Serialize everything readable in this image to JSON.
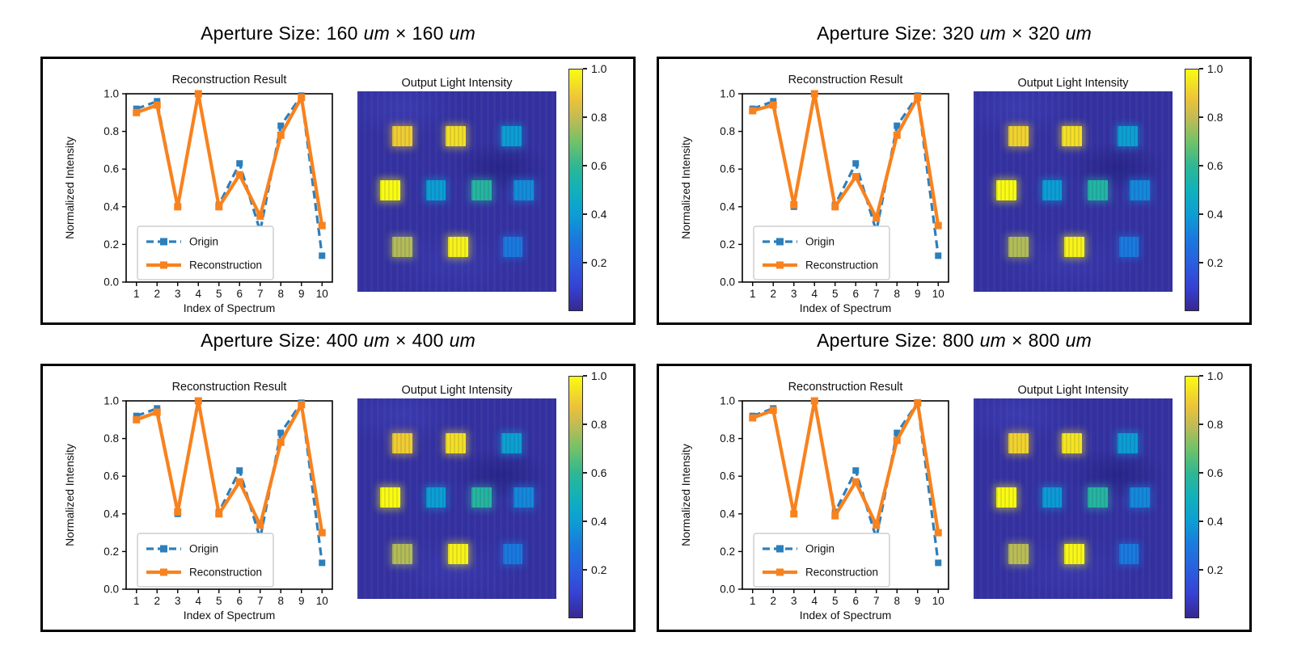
{
  "colors": {
    "origin_series": "#2d7fbb",
    "reconstruction_series": "#f8821e",
    "panel_border": "#000000",
    "axes_spine": "#000000",
    "legend_border": "#cfcfcf",
    "heatmap_background": "#33309f"
  },
  "panels": [
    {
      "name": "aperture-160",
      "title_prefix": "Aperture Size:",
      "size": "160",
      "times": "×",
      "unit": "um"
    },
    {
      "name": "aperture-320",
      "title_prefix": "Aperture Size:",
      "size": "320",
      "times": "×",
      "unit": "um"
    },
    {
      "name": "aperture-400",
      "title_prefix": "Aperture Size:",
      "size": "400",
      "times": "×",
      "unit": "um"
    },
    {
      "name": "aperture-800",
      "title_prefix": "Aperture Size:",
      "size": "800",
      "times": "×",
      "unit": "um"
    }
  ],
  "chart_data": [
    {
      "aperture": "160 um × 160 um",
      "line": {
        "type": "line",
        "title": "Reconstruction Result",
        "xlabel": "Index of Spectrum",
        "ylabel": "Normalized Intensity",
        "x": [
          1,
          2,
          3,
          4,
          5,
          6,
          7,
          8,
          9,
          10
        ],
        "x_tick_labels": [
          "1",
          "2",
          "3",
          "4",
          "5",
          "6",
          "7",
          "8",
          "9",
          "10"
        ],
        "y_tick_labels": [
          "0.0",
          "0.2",
          "0.4",
          "0.6",
          "0.8",
          "1.0"
        ],
        "ylim": [
          0,
          1
        ],
        "xlim": [
          0.5,
          10.5
        ],
        "legend_position": "lower left",
        "series": [
          {
            "name": "Origin",
            "style": "dashed",
            "color": "#2d7fbb",
            "values": [
              0.92,
              0.96,
              0.4,
              1.0,
              0.41,
              0.63,
              0.27,
              0.83,
              0.99,
              0.14
            ]
          },
          {
            "name": "Reconstruction",
            "style": "solid",
            "color": "#f8821e",
            "values": [
              0.9,
              0.94,
              0.4,
              1.0,
              0.4,
              0.57,
              0.35,
              0.78,
              0.98,
              0.3
            ]
          }
        ]
      },
      "heatmap": {
        "type": "heatmap",
        "title": "Output Light Intensity",
        "colormap": "parula",
        "background_level": 0.05,
        "square_size": 0.1,
        "squares": [
          {
            "cx": 0.225,
            "cy": 0.225,
            "value": 0.9
          },
          {
            "cx": 0.495,
            "cy": 0.225,
            "value": 0.94
          },
          {
            "cx": 0.775,
            "cy": 0.225,
            "value": 0.4
          },
          {
            "cx": 0.165,
            "cy": 0.495,
            "value": 1.0
          },
          {
            "cx": 0.395,
            "cy": 0.495,
            "value": 0.4
          },
          {
            "cx": 0.625,
            "cy": 0.495,
            "value": 0.57
          },
          {
            "cx": 0.835,
            "cy": 0.495,
            "value": 0.35
          },
          {
            "cx": 0.225,
            "cy": 0.775,
            "value": 0.78
          },
          {
            "cx": 0.505,
            "cy": 0.775,
            "value": 0.98
          },
          {
            "cx": 0.78,
            "cy": 0.775,
            "value": 0.3
          }
        ],
        "colorbar": {
          "range": [
            0,
            1
          ],
          "tick_labels": [
            "1.0",
            "0.8",
            "0.6",
            "0.4",
            "0.2"
          ]
        }
      }
    },
    {
      "aperture": "320 um × 320 um",
      "line": {
        "type": "line",
        "title": "Reconstruction Result",
        "xlabel": "Index of Spectrum",
        "ylabel": "Normalized Intensity",
        "x": [
          1,
          2,
          3,
          4,
          5,
          6,
          7,
          8,
          9,
          10
        ],
        "x_tick_labels": [
          "1",
          "2",
          "3",
          "4",
          "5",
          "6",
          "7",
          "8",
          "9",
          "10"
        ],
        "y_tick_labels": [
          "0.0",
          "0.2",
          "0.4",
          "0.6",
          "0.8",
          "1.0"
        ],
        "ylim": [
          0,
          1
        ],
        "xlim": [
          0.5,
          10.5
        ],
        "legend_position": "lower left",
        "series": [
          {
            "name": "Origin",
            "style": "dashed",
            "color": "#2d7fbb",
            "values": [
              0.92,
              0.96,
              0.4,
              1.0,
              0.41,
              0.63,
              0.27,
              0.83,
              0.99,
              0.14
            ]
          },
          {
            "name": "Reconstruction",
            "style": "solid",
            "color": "#f8821e",
            "values": [
              0.91,
              0.94,
              0.41,
              1.0,
              0.4,
              0.56,
              0.34,
              0.78,
              0.98,
              0.3
            ]
          }
        ]
      },
      "heatmap": {
        "type": "heatmap",
        "title": "Output Light Intensity",
        "colormap": "parula",
        "background_level": 0.05,
        "square_size": 0.1,
        "squares": [
          {
            "cx": 0.225,
            "cy": 0.225,
            "value": 0.91
          },
          {
            "cx": 0.495,
            "cy": 0.225,
            "value": 0.94
          },
          {
            "cx": 0.775,
            "cy": 0.225,
            "value": 0.41
          },
          {
            "cx": 0.165,
            "cy": 0.495,
            "value": 1.0
          },
          {
            "cx": 0.395,
            "cy": 0.495,
            "value": 0.4
          },
          {
            "cx": 0.625,
            "cy": 0.495,
            "value": 0.56
          },
          {
            "cx": 0.835,
            "cy": 0.495,
            "value": 0.34
          },
          {
            "cx": 0.225,
            "cy": 0.775,
            "value": 0.78
          },
          {
            "cx": 0.505,
            "cy": 0.775,
            "value": 0.98
          },
          {
            "cx": 0.78,
            "cy": 0.775,
            "value": 0.3
          }
        ],
        "colorbar": {
          "range": [
            0,
            1
          ],
          "tick_labels": [
            "1.0",
            "0.8",
            "0.6",
            "0.4",
            "0.2"
          ]
        }
      }
    },
    {
      "aperture": "400 um × 400 um",
      "line": {
        "type": "line",
        "title": "Reconstruction Result",
        "xlabel": "Index of Spectrum",
        "ylabel": "Normalized Intensity",
        "x": [
          1,
          2,
          3,
          4,
          5,
          6,
          7,
          8,
          9,
          10
        ],
        "x_tick_labels": [
          "1",
          "2",
          "3",
          "4",
          "5",
          "6",
          "7",
          "8",
          "9",
          "10"
        ],
        "y_tick_labels": [
          "0.0",
          "0.2",
          "0.4",
          "0.6",
          "0.8",
          "1.0"
        ],
        "ylim": [
          0,
          1
        ],
        "xlim": [
          0.5,
          10.5
        ],
        "legend_position": "lower left",
        "series": [
          {
            "name": "Origin",
            "style": "dashed",
            "color": "#2d7fbb",
            "values": [
              0.92,
              0.96,
              0.4,
              1.0,
              0.41,
              0.63,
              0.27,
              0.83,
              0.99,
              0.14
            ]
          },
          {
            "name": "Reconstruction",
            "style": "solid",
            "color": "#f8821e",
            "values": [
              0.9,
              0.94,
              0.41,
              1.0,
              0.4,
              0.57,
              0.34,
              0.78,
              0.98,
              0.3
            ]
          }
        ]
      },
      "heatmap": {
        "type": "heatmap",
        "title": "Output Light Intensity",
        "colormap": "parula",
        "background_level": 0.05,
        "square_size": 0.1,
        "squares": [
          {
            "cx": 0.225,
            "cy": 0.225,
            "value": 0.9
          },
          {
            "cx": 0.495,
            "cy": 0.225,
            "value": 0.94
          },
          {
            "cx": 0.775,
            "cy": 0.225,
            "value": 0.41
          },
          {
            "cx": 0.165,
            "cy": 0.495,
            "value": 1.0
          },
          {
            "cx": 0.395,
            "cy": 0.495,
            "value": 0.4
          },
          {
            "cx": 0.625,
            "cy": 0.495,
            "value": 0.57
          },
          {
            "cx": 0.835,
            "cy": 0.495,
            "value": 0.34
          },
          {
            "cx": 0.225,
            "cy": 0.775,
            "value": 0.78
          },
          {
            "cx": 0.505,
            "cy": 0.775,
            "value": 0.98
          },
          {
            "cx": 0.78,
            "cy": 0.775,
            "value": 0.3
          }
        ],
        "colorbar": {
          "range": [
            0,
            1
          ],
          "tick_labels": [
            "1.0",
            "0.8",
            "0.6",
            "0.4",
            "0.2"
          ]
        }
      }
    },
    {
      "aperture": "800 um × 800 um",
      "line": {
        "type": "line",
        "title": "Reconstruction Result",
        "xlabel": "Index of Spectrum",
        "ylabel": "Normalized Intensity",
        "x": [
          1,
          2,
          3,
          4,
          5,
          6,
          7,
          8,
          9,
          10
        ],
        "x_tick_labels": [
          "1",
          "2",
          "3",
          "4",
          "5",
          "6",
          "7",
          "8",
          "9",
          "10"
        ],
        "y_tick_labels": [
          "0.0",
          "0.2",
          "0.4",
          "0.6",
          "0.8",
          "1.0"
        ],
        "ylim": [
          0,
          1
        ],
        "xlim": [
          0.5,
          10.5
        ],
        "legend_position": "lower left",
        "series": [
          {
            "name": "Origin",
            "style": "dashed",
            "color": "#2d7fbb",
            "values": [
              0.92,
              0.96,
              0.4,
              1.0,
              0.41,
              0.63,
              0.27,
              0.83,
              0.99,
              0.14
            ]
          },
          {
            "name": "Reconstruction",
            "style": "solid",
            "color": "#f8821e",
            "values": [
              0.91,
              0.95,
              0.4,
              1.0,
              0.39,
              0.57,
              0.34,
              0.79,
              0.99,
              0.3
            ]
          }
        ]
      },
      "heatmap": {
        "type": "heatmap",
        "title": "Output Light Intensity",
        "colormap": "parula",
        "background_level": 0.05,
        "square_size": 0.1,
        "squares": [
          {
            "cx": 0.225,
            "cy": 0.225,
            "value": 0.91
          },
          {
            "cx": 0.495,
            "cy": 0.225,
            "value": 0.95
          },
          {
            "cx": 0.775,
            "cy": 0.225,
            "value": 0.4
          },
          {
            "cx": 0.165,
            "cy": 0.495,
            "value": 1.0
          },
          {
            "cx": 0.395,
            "cy": 0.495,
            "value": 0.39
          },
          {
            "cx": 0.625,
            "cy": 0.495,
            "value": 0.57
          },
          {
            "cx": 0.835,
            "cy": 0.495,
            "value": 0.34
          },
          {
            "cx": 0.225,
            "cy": 0.775,
            "value": 0.79
          },
          {
            "cx": 0.505,
            "cy": 0.775,
            "value": 0.99
          },
          {
            "cx": 0.78,
            "cy": 0.775,
            "value": 0.3
          }
        ],
        "colorbar": {
          "range": [
            0,
            1
          ],
          "tick_labels": [
            "1.0",
            "0.8",
            "0.6",
            "0.4",
            "0.2"
          ]
        }
      }
    }
  ]
}
